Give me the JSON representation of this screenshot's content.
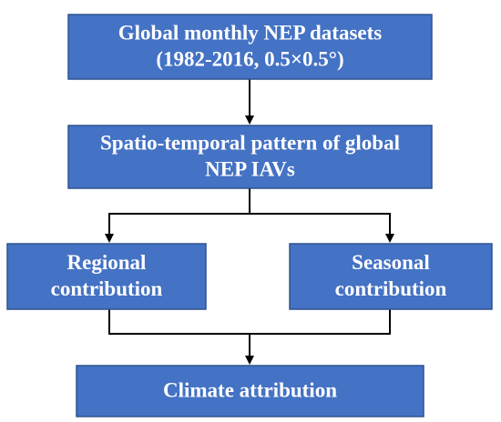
{
  "nodes": [
    {
      "lines": [
        "Global monthly NEP datasets",
        "(1982-2016, 0.5×0.5°)"
      ]
    },
    {
      "lines": [
        "Spatio-temporal pattern of global",
        "NEP IAVs"
      ]
    },
    {
      "lines": [
        "Regional",
        "contribution"
      ]
    },
    {
      "lines": [
        "Seasonal",
        "contribution"
      ]
    },
    {
      "lines": [
        "Climate attribution"
      ]
    }
  ]
}
